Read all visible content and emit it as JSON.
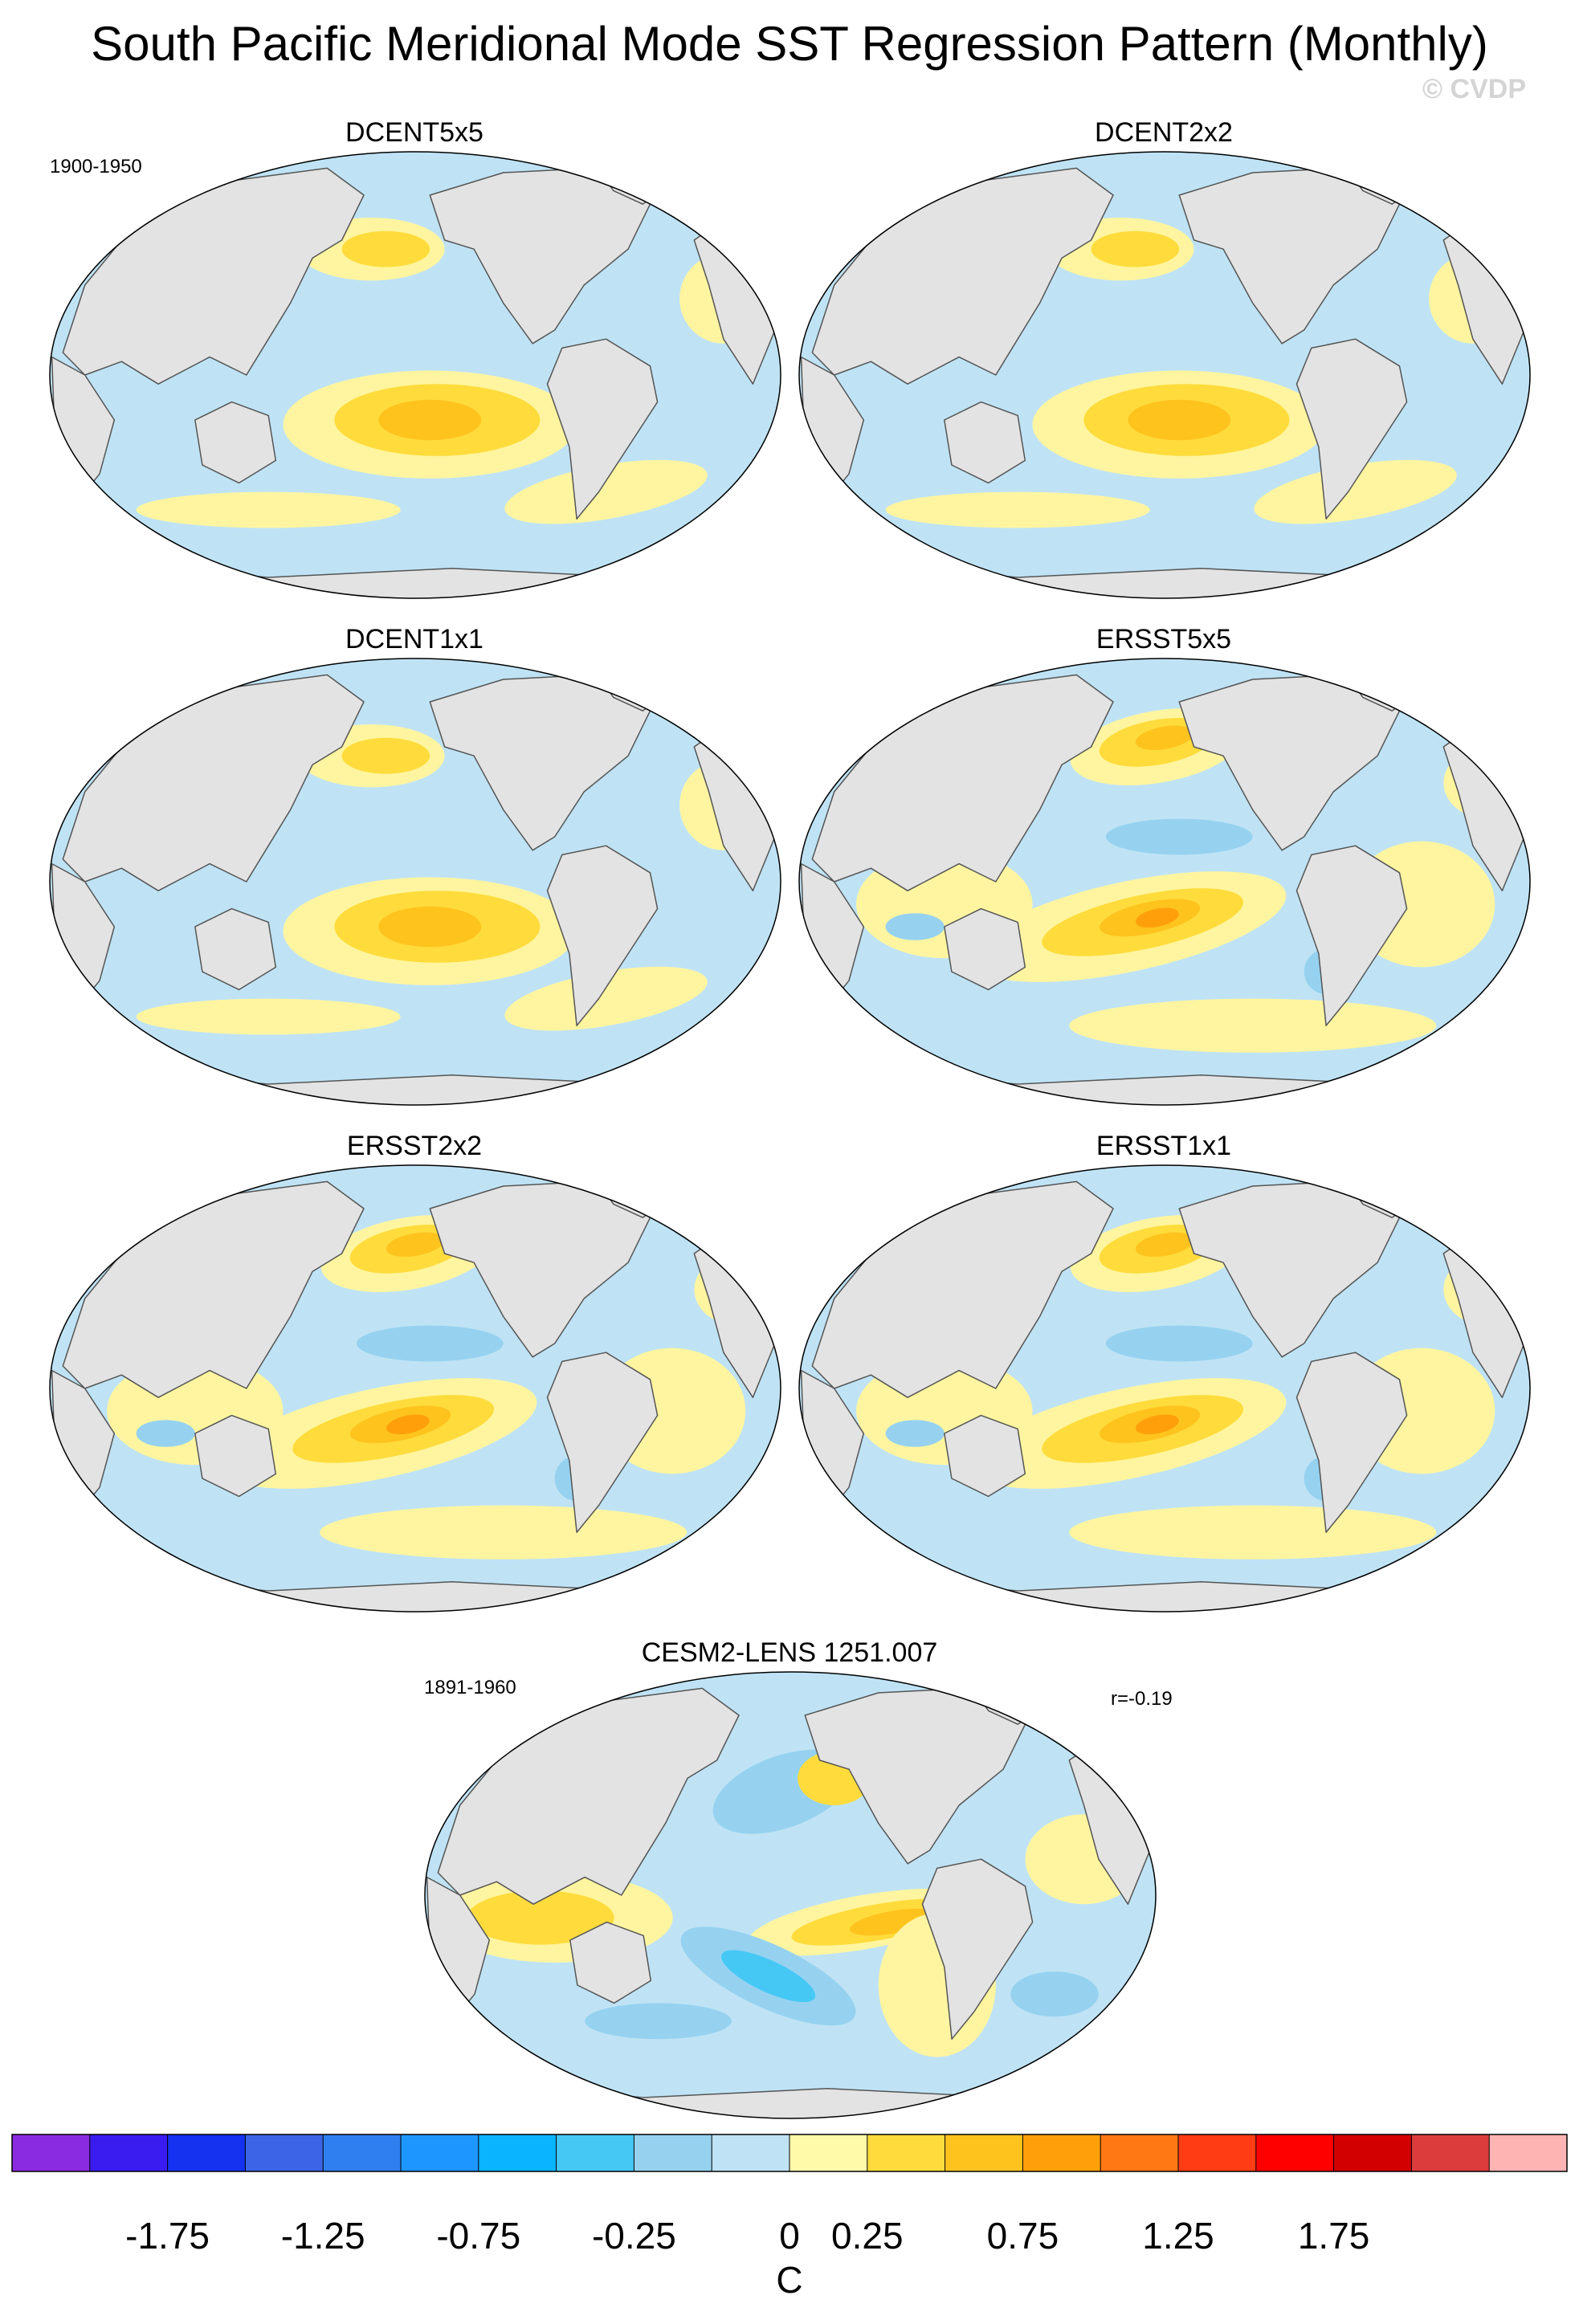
{
  "figure": {
    "title": "South Pacific Meridional Mode SST Regression Pattern (Monthly)",
    "credit": "© CVDP"
  },
  "panels": [
    {
      "title": "DCENT5x5",
      "period": "1900-1950",
      "stat": ""
    },
    {
      "title": "DCENT2x2",
      "period": "",
      "stat": ""
    },
    {
      "title": "DCENT1x1",
      "period": "",
      "stat": ""
    },
    {
      "title": "ERSST5x5",
      "period": "",
      "stat": ""
    },
    {
      "title": "ERSST2x2",
      "period": "",
      "stat": ""
    },
    {
      "title": "ERSST1x1",
      "period": "",
      "stat": ""
    },
    {
      "title": "CESM2-LENS 1251.007",
      "period": "1891-1960",
      "stat": "r=-0.19"
    }
  ],
  "colorbar": {
    "unit": "C",
    "labels": [
      "-1.75",
      "-1.25",
      "-0.75",
      "-0.25",
      "0",
      "0.25",
      "0.75",
      "1.25",
      "1.75"
    ],
    "colors": [
      "#8a2be2",
      "#3a1cf0",
      "#1432f0",
      "#3c64e6",
      "#2f7ff0",
      "#1e96ff",
      "#0ab4ff",
      "#46c8f5",
      "#96d2f0",
      "#bfe3f5",
      "#fffaaa",
      "#ffdc3c",
      "#ffc31e",
      "#ffa00a",
      "#ff7814",
      "#ff3c14",
      "#ff0000",
      "#d20000",
      "#dc3c3c",
      "#ffb4b4"
    ]
  },
  "colors": {
    "land": "#e3e3e3",
    "coast": "#555555",
    "neg_light": "#bfe3f5",
    "neg_mid": "#96d2f0",
    "neg_strong": "#46c8f5",
    "pos_light": "#fff5a0",
    "pos_mid": "#ffdc3c",
    "pos_strong": "#ffc31e",
    "pos_peak": "#ffa00a"
  }
}
